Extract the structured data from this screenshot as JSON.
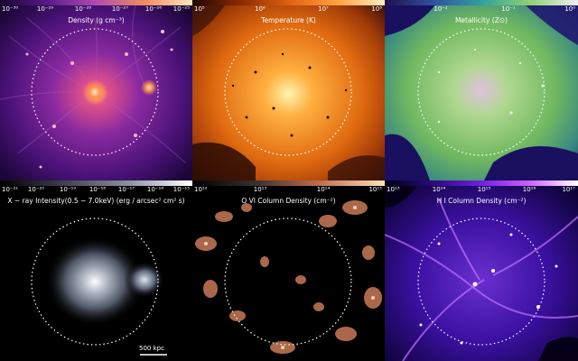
{
  "panels": [
    {
      "id": "density",
      "label": "Density (g cm⁻³)",
      "ticks": [
        "10⁻³⁰",
        "10⁻²⁹",
        "10⁻²⁸",
        "10⁻²⁷",
        "10⁻²⁶",
        "10⁻²⁵"
      ]
    },
    {
      "id": "temperature",
      "label": "Temperature (K)",
      "ticks": [
        "10⁵",
        "10⁶",
        "10⁷",
        "10⁸"
      ]
    },
    {
      "id": "metallicity",
      "label": "Metallicity (Z⊙)",
      "ticks": [
        "10⁻²",
        "10⁻¹",
        "10⁰"
      ]
    },
    {
      "id": "xray",
      "label": "X − ray Intensity(0.5 − 7.0keV) (erg / arcsec² cm² s)",
      "ticks": [
        "10⁻²¹",
        "10⁻²⁰",
        "10⁻¹⁹",
        "10⁻¹⁸",
        "10⁻¹⁷",
        "10⁻¹⁶",
        "10⁻¹⁵"
      ],
      "scalebar": "500 kpc"
    },
    {
      "id": "ovi",
      "label": "O VI Column Density (cm⁻²)",
      "ticks": [
        "10¹²",
        "10¹³",
        "10¹⁴",
        "10¹⁵"
      ]
    },
    {
      "id": "hi",
      "label": "H I Column Density (cm⁻²)",
      "ticks": [
        "10¹³",
        "10¹⁴",
        "10¹⁵",
        "10¹⁶",
        "10¹⁷"
      ]
    }
  ],
  "colors": {
    "density": [
      "#1a0530",
      "#5a1a8a",
      "#b04ab0",
      "#f08a60",
      "#ffe8c0"
    ],
    "temperature": [
      "#200400",
      "#8a2a00",
      "#e06010",
      "#ffa040",
      "#fff0c0"
    ],
    "metallicity": [
      "#20104a",
      "#3050a0",
      "#30a0a0",
      "#90d070",
      "#f0f0f0"
    ],
    "xray": [
      "#000000",
      "#404050",
      "#8890a0",
      "#ffffff"
    ],
    "ovi": [
      "#000000",
      "#3a3030",
      "#c07050",
      "#ffe0c0"
    ],
    "hi": [
      "#000010",
      "#2a0a80",
      "#7020e0",
      "#d060ff",
      "#ffffff"
    ]
  }
}
